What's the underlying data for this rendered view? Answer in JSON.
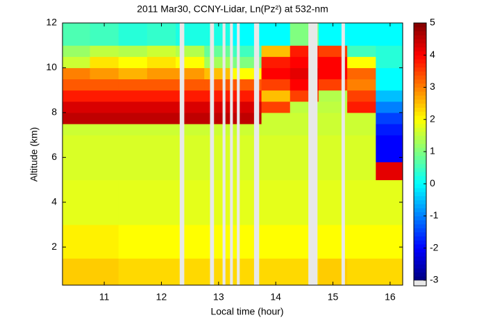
{
  "chart_data": {
    "type": "heatmap",
    "title": "2011 Mar30, CCNY-Lidar, Ln(Pz²) at 532-nm",
    "x_label": "Local time (hour)",
    "y_label": "Altitude (km)",
    "xlim": [
      10.27,
      16.22
    ],
    "xticks": [
      11,
      12,
      13,
      14,
      15,
      16
    ],
    "ylim": [
      0.3,
      12
    ],
    "yticks": [
      2,
      4,
      6,
      8,
      10,
      12
    ],
    "colormap": "jet",
    "clim": [
      -3,
      5
    ],
    "cticks": [
      -3,
      -2,
      -1,
      0,
      1,
      2,
      3,
      4,
      5
    ],
    "gap_color": "#e8e8e8",
    "xbins": [
      10.27,
      10.75,
      11.25,
      11.75,
      12.25,
      12.75,
      13.25,
      13.75,
      14.25,
      14.75,
      15.25,
      15.75,
      16.22
    ],
    "ybins": [
      0.3,
      1.5,
      3,
      5,
      5.8,
      7,
      7.5,
      8,
      8.5,
      9,
      9.5,
      10,
      10.5,
      11,
      12
    ],
    "z": [
      [
        2.4,
        2.4,
        2.3,
        2.3,
        2.3,
        2.3,
        2.3,
        2.3,
        2.3,
        2.4,
        2.3,
        2.3
      ],
      [
        2.1,
        2.1,
        2.0,
        2.0,
        2.0,
        2.0,
        2.0,
        2.0,
        2.0,
        2.0,
        2.0,
        2.0
      ],
      [
        1.8,
        1.8,
        1.8,
        1.8,
        1.8,
        1.8,
        1.8,
        1.8,
        1.8,
        1.8,
        1.8,
        1.8
      ],
      [
        1.7,
        1.7,
        1.7,
        1.7,
        1.7,
        1.7,
        1.7,
        1.7,
        1.7,
        1.7,
        1.7,
        4.2
      ],
      [
        1.7,
        1.7,
        1.7,
        1.7,
        1.7,
        1.7,
        1.7,
        1.7,
        1.7,
        1.7,
        1.7,
        -2
      ],
      [
        1.6,
        1.6,
        1.6,
        1.6,
        1.6,
        1.6,
        1.6,
        1.6,
        1.6,
        1.6,
        1.6,
        -1.8
      ],
      [
        4.5,
        4.5,
        4.5,
        4.5,
        4.5,
        4.5,
        4.5,
        1.6,
        1.6,
        1.6,
        1.6,
        -1.5
      ],
      [
        4.3,
        4.3,
        4.3,
        4.3,
        4.3,
        4.3,
        4.3,
        3.5,
        1.5,
        1.5,
        3.8,
        -1
      ],
      [
        3.8,
        3.8,
        3.8,
        3.8,
        3.8,
        3.8,
        3.8,
        2.5,
        3.5,
        1.4,
        3.5,
        -0.5
      ],
      [
        3.3,
        3.3,
        3.3,
        3.3,
        3.3,
        3.3,
        3.3,
        3.5,
        4,
        3.5,
        3,
        0
      ],
      [
        3,
        2.8,
        2.6,
        2.8,
        2.8,
        2.5,
        2,
        4,
        4.2,
        4,
        3.2,
        0
      ],
      [
        1.6,
        2.2,
        2,
        2.2,
        2,
        1.3,
        1,
        3.8,
        4,
        4,
        2,
        0.3
      ],
      [
        1.2,
        1.5,
        1.4,
        1.6,
        1.4,
        0.8,
        0.5,
        2.5,
        3.8,
        3.5,
        0.5,
        0.3
      ],
      [
        0.6,
        0.5,
        0.3,
        0.4,
        0.2,
        0.2,
        0,
        0,
        1,
        0,
        0,
        0
      ]
    ],
    "gaps": [
      [
        12.32,
        12.4
      ],
      [
        12.85,
        12.92
      ],
      [
        13.07,
        13.12
      ],
      [
        13.2,
        13.25
      ],
      [
        13.32,
        13.37
      ],
      [
        13.62,
        13.71
      ],
      [
        14.57,
        14.73
      ],
      [
        15.15,
        15.21
      ]
    ]
  }
}
